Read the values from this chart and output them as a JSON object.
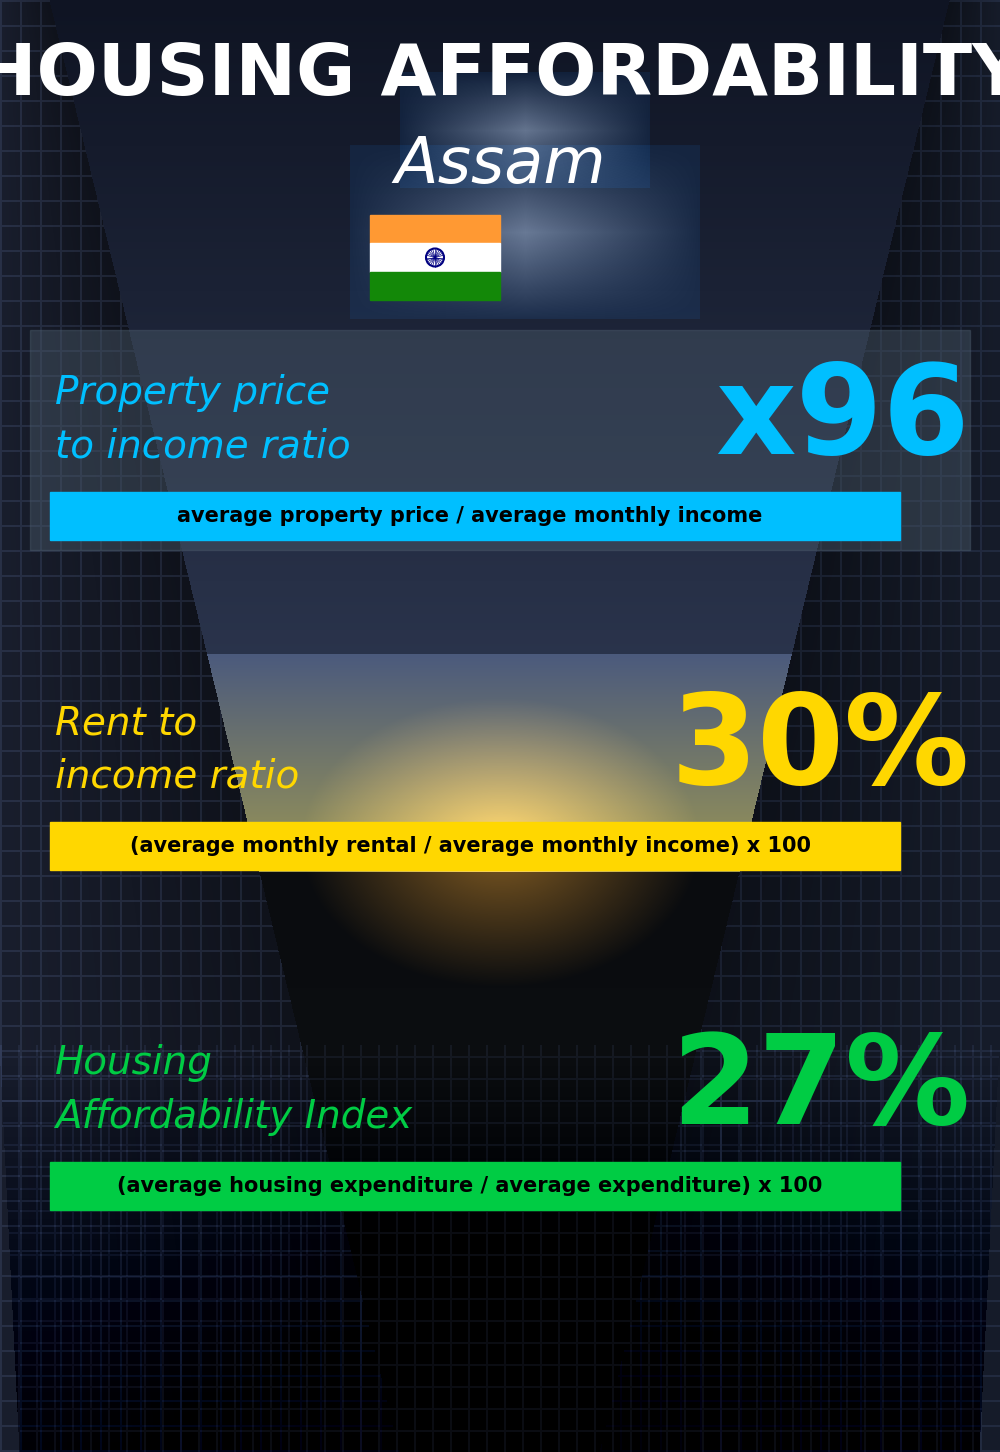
{
  "title_line1": "HOUSING AFFORDABILITY",
  "title_line2": "Assam",
  "section1_label": "Property price\nto income ratio",
  "section1_value": "x96",
  "section1_label_color": "#00bfff",
  "section1_value_color": "#00bfff",
  "section1_bar_text": "average property price / average monthly income",
  "section1_bar_color": "#00bfff",
  "section2_label": "Rent to\nincome ratio",
  "section2_value": "30%",
  "section2_label_color": "#FFD700",
  "section2_value_color": "#FFD700",
  "section2_bar_text": "(average monthly rental / average monthly income) x 100",
  "section2_bar_color": "#FFD700",
  "section3_label": "Housing\nAffordability Index",
  "section3_value": "27%",
  "section3_label_color": "#00cc44",
  "section3_value_color": "#00cc44",
  "section3_bar_text": "(average housing expenditure / average expenditure) x 100",
  "section3_bar_color": "#00cc44",
  "bg_color": "#080d14",
  "title_color": "#ffffff",
  "bar_text_color": "#000000"
}
